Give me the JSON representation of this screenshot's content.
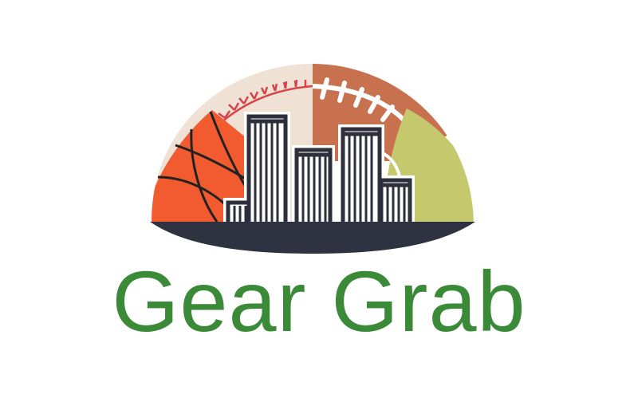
{
  "brand": {
    "name": "Gear Grab",
    "name_color": "#3a8a38"
  },
  "emblem": {
    "icons": [
      "baseball-icon",
      "football-icon",
      "basketball-icon",
      "tennis-ball-icon",
      "city-skyline-icon"
    ],
    "colors": {
      "baseball": "#efe2d4",
      "baseball_stitch": "#d8434a",
      "football": "#c8714e",
      "football_lace": "#ffffff",
      "basketball": "#f25a2f",
      "basketball_seam": "#222222",
      "tennis": "#c6c86e",
      "building": "#2e2f3a",
      "ground": "#2f3240"
    }
  }
}
